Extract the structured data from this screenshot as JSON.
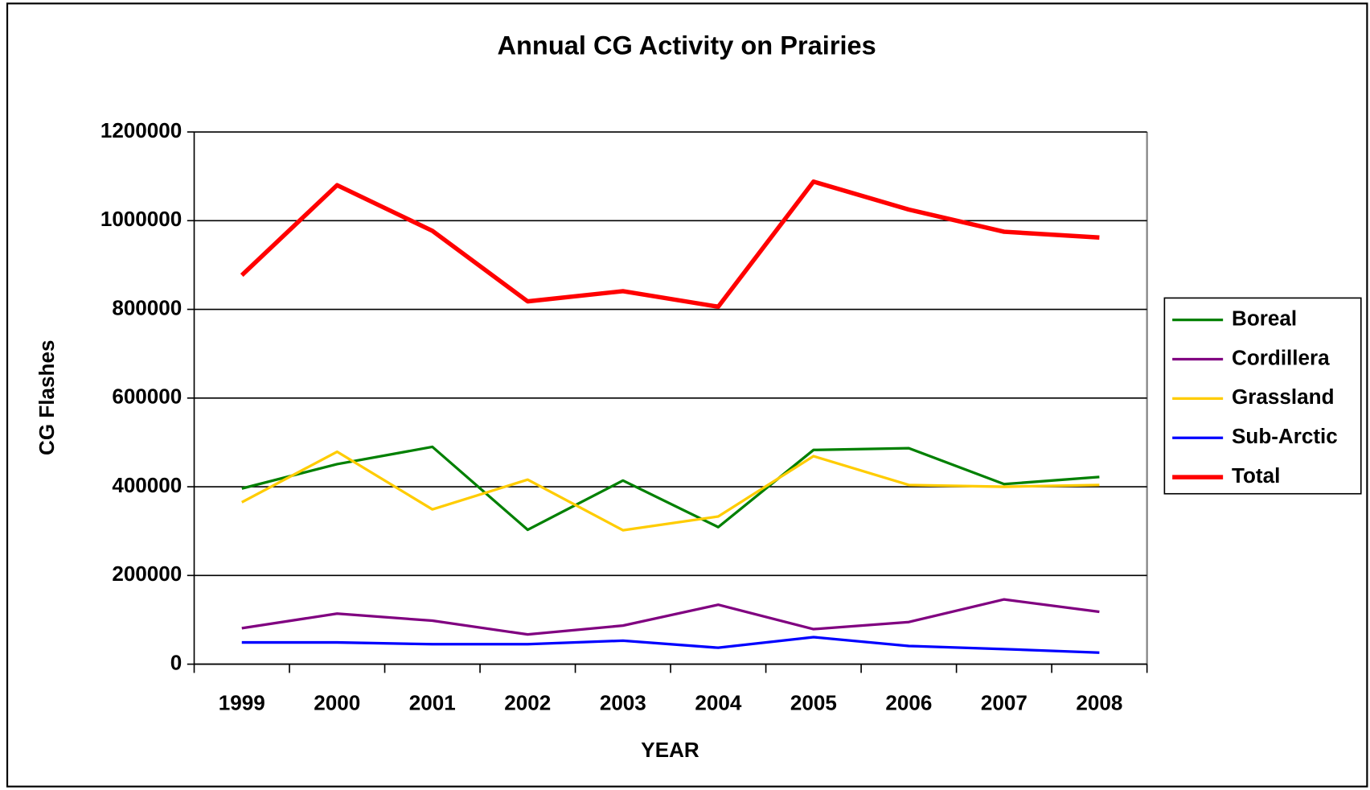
{
  "chart_data": {
    "type": "line",
    "title": "Annual CG Activity on Prairies",
    "x_label": "YEAR",
    "y_label": "CG Flashes",
    "categories": [
      "1999",
      "2000",
      "2001",
      "2002",
      "2003",
      "2004",
      "2005",
      "2006",
      "2007",
      "2008"
    ],
    "series": [
      {
        "name": "Boreal",
        "color": "#008000",
        "values": [
          396000,
          451000,
          490000,
          303000,
          414000,
          309000,
          483000,
          487000,
          406000,
          422000
        ]
      },
      {
        "name": "Cordillera",
        "color": "#800080",
        "values": [
          81000,
          114000,
          98000,
          67000,
          87000,
          134000,
          79000,
          95000,
          146000,
          118000
        ]
      },
      {
        "name": "Grassland",
        "color": "#ffcc00",
        "values": [
          365000,
          479000,
          349000,
          416000,
          302000,
          333000,
          469000,
          404000,
          400000,
          404000
        ]
      },
      {
        "name": "Sub-Arctic",
        "color": "#0000ff",
        "values": [
          49000,
          49000,
          45000,
          45000,
          53000,
          37000,
          61000,
          41000,
          34000,
          26000
        ]
      },
      {
        "name": "Total",
        "color": "#ff0000",
        "values": [
          877000,
          1080000,
          977000,
          818000,
          841000,
          806000,
          1088000,
          1025000,
          975000,
          962000
        ]
      }
    ],
    "ylim": [
      0,
      1200000
    ],
    "yticks": [
      0,
      200000,
      400000,
      600000,
      800000,
      1000000,
      1200000
    ],
    "grid": true,
    "legend": "right"
  }
}
